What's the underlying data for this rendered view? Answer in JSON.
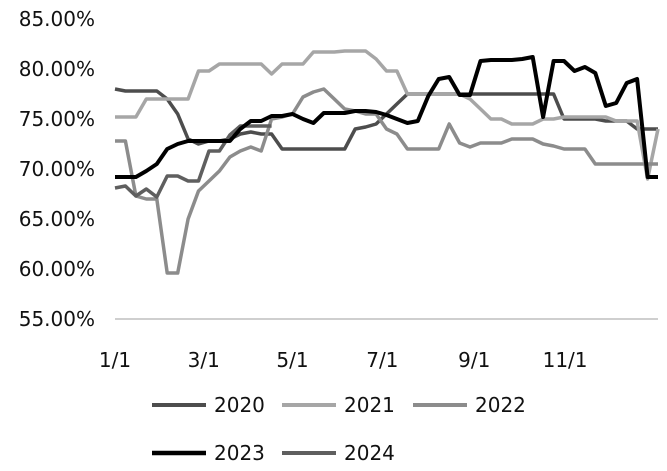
{
  "chart_data": {
    "type": "line",
    "y_axis": {
      "min": 55,
      "max": 85,
      "step": 5,
      "tick_labels": [
        "55.00%",
        "60.00%",
        "65.00%",
        "70.00%",
        "75.00%",
        "80.00%",
        "85.00%"
      ]
    },
    "x_axis": {
      "min_week": 1,
      "max_week": 53,
      "ticks": [
        {
          "label": "1/1",
          "week": 1
        },
        {
          "label": "3/1",
          "week": 9.5
        },
        {
          "label": "5/1",
          "week": 18
        },
        {
          "label": "7/1",
          "week": 26.6
        },
        {
          "label": "9/1",
          "week": 35.4
        },
        {
          "label": "11/1",
          "week": 44.1
        }
      ]
    },
    "grid": false,
    "legend_position": "bottom",
    "series": [
      {
        "name": "2020",
        "color": "#4d4d4d",
        "values": [
          78.0,
          77.8,
          77.8,
          77.8,
          77.8,
          77.0,
          75.5,
          73.0,
          72.5,
          72.8,
          72.8,
          73.0,
          73.5,
          73.7,
          73.5,
          73.5,
          72.0,
          72.0,
          72.0,
          72.0,
          72.0,
          72.0,
          72.0,
          74.0,
          74.2,
          74.5,
          75.5,
          76.5,
          77.5,
          77.5,
          77.5,
          77.5,
          77.5,
          77.5,
          77.5,
          77.5,
          77.5,
          77.5,
          77.5,
          77.5,
          77.5,
          77.5,
          77.5,
          75.0,
          75.0,
          75.0,
          75.0,
          74.8,
          74.8,
          74.8,
          74.0,
          74.0,
          74.0
        ]
      },
      {
        "name": "2021",
        "color": "#a6a6a6",
        "values": [
          75.2,
          75.2,
          75.2,
          77.0,
          77.0,
          77.0,
          77.0,
          77.0,
          79.8,
          79.8,
          80.5,
          80.5,
          80.5,
          80.5,
          80.5,
          79.5,
          80.5,
          80.5,
          80.5,
          81.7,
          81.7,
          81.7,
          81.8,
          81.8,
          81.8,
          81.0,
          79.8,
          79.8,
          77.5,
          77.5,
          77.5,
          77.5,
          77.5,
          77.5,
          77.0,
          76.0,
          75.0,
          75.0,
          74.5,
          74.5,
          74.5,
          75.0,
          75.0,
          75.2,
          75.2,
          75.2,
          75.2,
          75.2,
          74.8,
          74.8,
          74.8,
          69.0,
          74.0
        ]
      },
      {
        "name": "2022",
        "color": "#8c8c8c",
        "values": [
          72.8,
          72.8,
          67.3,
          67.0,
          67.0,
          59.6,
          59.6,
          65.0,
          67.8,
          68.8,
          69.8,
          71.2,
          71.8,
          72.2,
          71.8,
          75.0,
          75.2,
          75.5,
          77.2,
          77.7,
          78.0,
          77.0,
          76.0,
          75.8,
          75.5,
          75.5,
          74.0,
          73.5,
          72.0,
          72.0,
          72.0,
          72.0,
          74.5,
          72.6,
          72.2,
          72.6,
          72.6,
          72.6,
          73.0,
          73.0,
          73.0,
          72.5,
          72.3,
          72.0,
          72.0,
          72.0,
          70.5,
          70.5,
          70.5,
          70.5,
          70.5,
          70.5,
          70.5
        ]
      },
      {
        "name": "2023",
        "color": "#000000",
        "values": [
          69.2,
          69.2,
          69.2,
          69.8,
          70.5,
          72.0,
          72.5,
          72.8,
          72.8,
          72.8,
          72.8,
          72.8,
          74.0,
          74.8,
          74.8,
          75.3,
          75.3,
          75.5,
          75.0,
          74.6,
          75.6,
          75.6,
          75.6,
          75.8,
          75.8,
          75.7,
          75.4,
          75.0,
          74.6,
          74.8,
          77.3,
          79.0,
          79.2,
          77.4,
          77.4,
          80.8,
          80.9,
          80.9,
          80.9,
          81.0,
          81.2,
          75.2,
          80.8,
          80.8,
          79.8,
          80.2,
          79.6,
          76.3,
          76.6,
          78.6,
          79.0,
          69.2,
          69.2
        ]
      },
      {
        "name": "2024",
        "color": "#5f5f5f",
        "values": [
          68.1,
          68.3,
          67.3,
          68.0,
          67.2,
          69.3,
          69.3,
          68.8,
          68.8,
          71.8,
          71.8,
          73.4,
          74.3,
          74.3,
          74.3,
          74.3
        ]
      }
    ]
  }
}
